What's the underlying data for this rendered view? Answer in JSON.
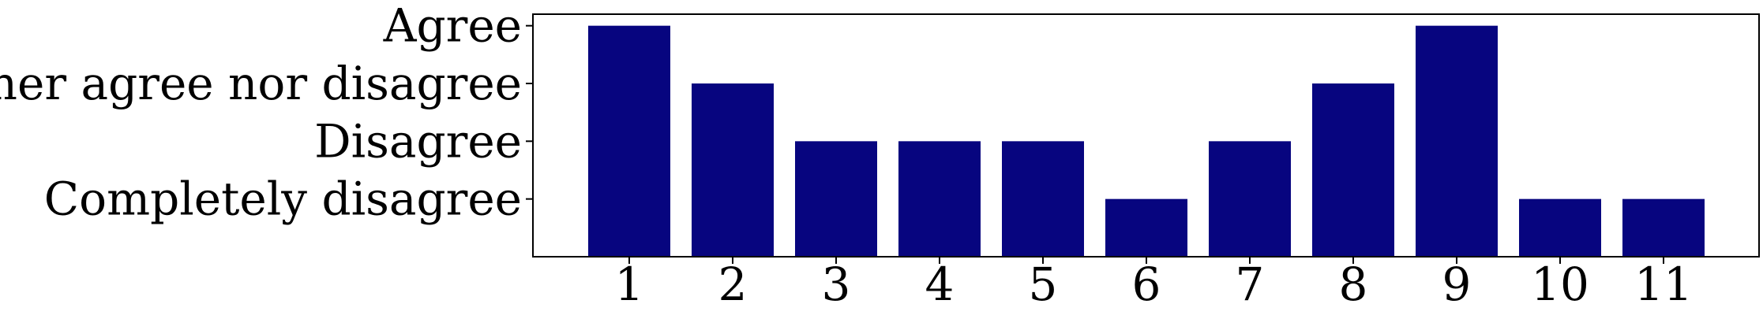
{
  "chart_data": {
    "type": "bar",
    "title": "",
    "xlabel": "",
    "ylabel": "",
    "categories": [
      "1",
      "2",
      "3",
      "4",
      "5",
      "6",
      "7",
      "8",
      "9",
      "10",
      "11"
    ],
    "values": [
      4,
      3,
      2,
      2,
      2,
      1,
      2,
      3,
      4,
      1,
      1
    ],
    "y_tick_values": [
      1,
      2,
      3,
      4
    ],
    "y_tick_labels": [
      "Completely disagree",
      "Disagree",
      "Neither agree nor disagree",
      "Agree"
    ],
    "ylim": [
      0,
      4.2
    ],
    "grid": false,
    "legend": "none",
    "bar_color": "#07057F",
    "axis_color": "#000000"
  }
}
